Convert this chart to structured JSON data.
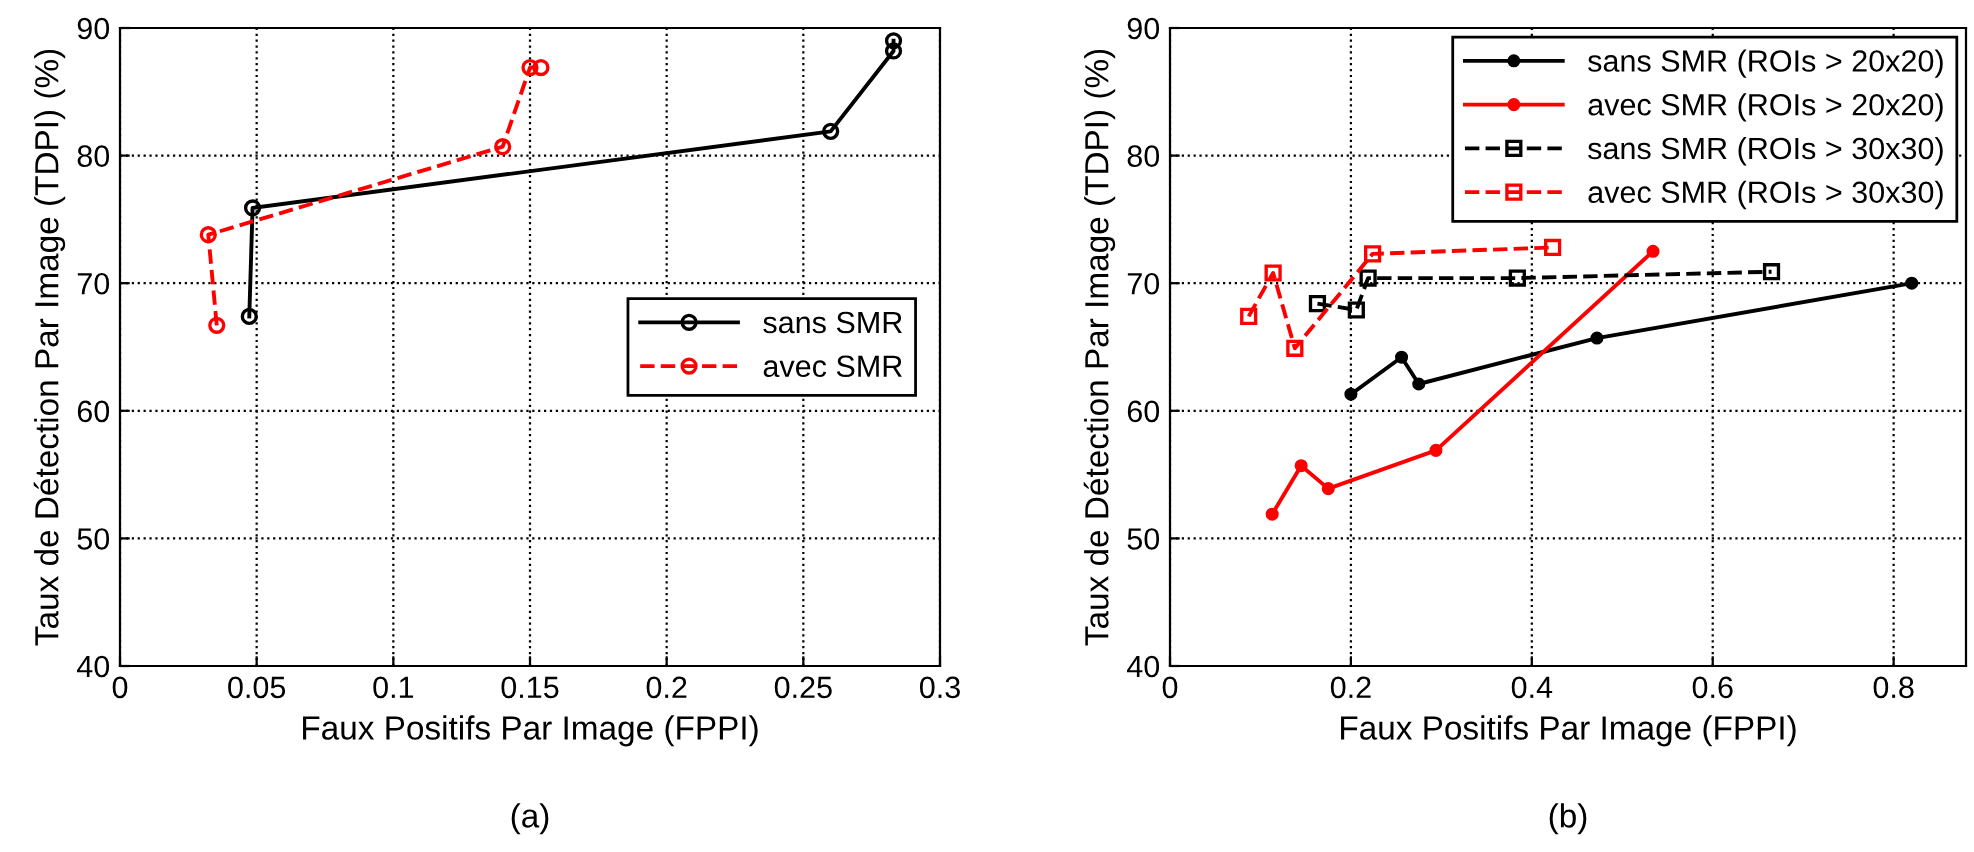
{
  "chart_data": [
    {
      "type": "line",
      "xlabel": "Faux Positifs Par Image (FPPI)",
      "ylabel": "Taux de Détection Par Image (TDPI) (%)",
      "annotations": [
        "(a)"
      ],
      "xlim": [
        0,
        0.3
      ],
      "ylim": [
        40,
        90
      ],
      "xticks": [
        0,
        0.05,
        0.1,
        0.15,
        0.2,
        0.25,
        0.3
      ],
      "yticks": [
        40,
        50,
        60,
        70,
        80,
        90
      ],
      "grid": true,
      "legend": "right",
      "series": [
        {
          "name": "sans SMR",
          "color": "#000000",
          "marker": "circle",
          "line_style": "solid",
          "x": [
            0.0473,
            0.0485,
            0.26,
            0.283,
            0.283
          ],
          "values": [
            67.4,
            75.9,
            81.9,
            88.2,
            89.0
          ]
        },
        {
          "name": "avec SMR",
          "color": "#ff0000",
          "marker": "circle",
          "line_style": "dashed",
          "x": [
            0.0354,
            0.0323,
            0.14,
            0.15,
            0.154
          ],
          "values": [
            66.7,
            73.8,
            80.7,
            86.9,
            86.9
          ]
        }
      ]
    },
    {
      "type": "line",
      "xlabel": "Faux Positifs Par Image (FPPI)",
      "ylabel": "Taux de Détection Par Image (TDPI) (%)",
      "annotations": [
        "(b)"
      ],
      "xlim": [
        0,
        0.88
      ],
      "ylim": [
        40,
        90
      ],
      "xticks": [
        0,
        0.2,
        0.4,
        0.6,
        0.8
      ],
      "yticks": [
        40,
        50,
        60,
        70,
        80,
        90
      ],
      "grid": true,
      "legend": "top right",
      "series": [
        {
          "name": "sans SMR (ROIs > 20x20)",
          "color": "#000000",
          "marker": "dot",
          "line_style": "solid",
          "x": [
            0.2,
            0.256,
            0.275,
            0.472,
            0.82
          ],
          "values": [
            61.3,
            64.2,
            62.1,
            65.7,
            70.0
          ]
        },
        {
          "name": "avec SMR (ROIs > 20x20)",
          "color": "#ff0000",
          "marker": "dot",
          "line_style": "solid",
          "x": [
            0.113,
            0.145,
            0.175,
            0.294,
            0.534
          ],
          "values": [
            51.9,
            55.7,
            53.9,
            56.9,
            72.5
          ]
        },
        {
          "name": "sans SMR (ROIs > 30x30)",
          "color": "#000000",
          "marker": "square",
          "line_style": "dashed",
          "x": [
            0.163,
            0.206,
            0.219,
            0.384,
            0.665
          ],
          "values": [
            68.4,
            67.9,
            70.4,
            70.4,
            70.9
          ]
        },
        {
          "name": "avec SMR (ROIs > 30x30)",
          "color": "#ff0000",
          "marker": "square",
          "line_style": "dashed",
          "x": [
            0.087,
            0.114,
            0.138,
            0.224,
            0.423
          ],
          "values": [
            67.4,
            70.8,
            64.9,
            72.3,
            72.8
          ]
        }
      ]
    }
  ]
}
